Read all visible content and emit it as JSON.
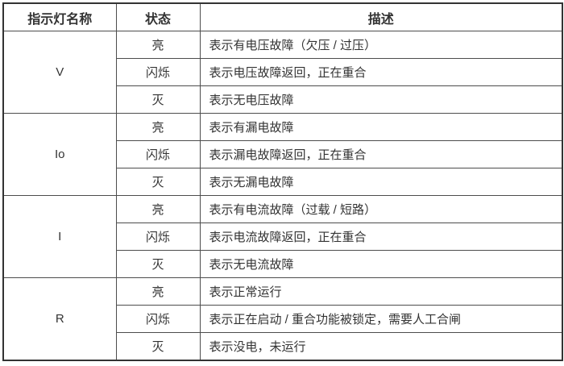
{
  "table": {
    "headers": {
      "name": "指示灯名称",
      "state": "状态",
      "desc": "描述"
    },
    "groups": [
      {
        "name": "V",
        "rows": [
          {
            "state": "亮",
            "desc": "表示有电压故障（欠压 / 过压）"
          },
          {
            "state": "闪烁",
            "desc": "表示电压故障返回，正在重合"
          },
          {
            "state": "灭",
            "desc": "表示无电压故障"
          }
        ]
      },
      {
        "name": "Io",
        "rows": [
          {
            "state": "亮",
            "desc": "表示有漏电故障"
          },
          {
            "state": "闪烁",
            "desc": "表示漏电故障返回，正在重合"
          },
          {
            "state": "灭",
            "desc": "表示无漏电故障"
          }
        ]
      },
      {
        "name": "I",
        "rows": [
          {
            "state": "亮",
            "desc": "表示有电流故障（过载 / 短路）"
          },
          {
            "state": "闪烁",
            "desc": "表示电流故障返回，正在重合"
          },
          {
            "state": "灭",
            "desc": "表示无电流故障"
          }
        ]
      },
      {
        "name": "R",
        "rows": [
          {
            "state": "亮",
            "desc": "表示正常运行"
          },
          {
            "state": "闪烁",
            "desc": "表示正在启动 / 重合功能被锁定，需要人工合闸"
          },
          {
            "state": "灭",
            "desc": "表示没电，未运行"
          }
        ]
      }
    ]
  },
  "colors": {
    "outer_border": "#333333",
    "inner_border": "#4d4d4d",
    "text": "#333333",
    "background": "#ffffff"
  }
}
